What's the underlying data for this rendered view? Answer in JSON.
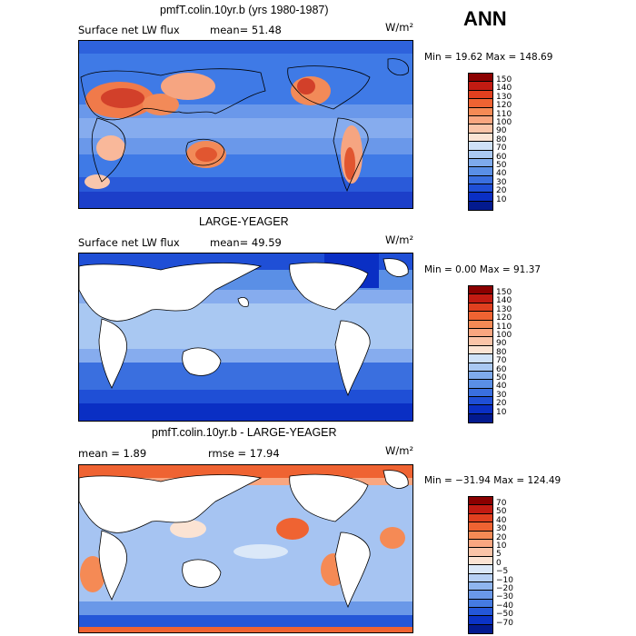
{
  "season": "ANN",
  "panels": [
    {
      "title": "pmfT.colin.10yr.b (yrs 1980-1987)",
      "variable": "Surface net LW flux",
      "stat": "mean=  51.48",
      "units": "W/m²",
      "minmax": "Min =  19.62 Max = 148.69",
      "levels": [
        "150",
        "140",
        "130",
        "120",
        "110",
        "100",
        "90",
        "80",
        "70",
        "60",
        "50",
        "40",
        "30",
        "20",
        "10"
      ],
      "colors": [
        "#8b0000",
        "#c21b12",
        "#e0401f",
        "#ef6332",
        "#f58a55",
        "#f9a680",
        "#fac4a8",
        "#fbe3d3",
        "#cfe1f7",
        "#a9c8f2",
        "#7eaaec",
        "#5a8fe6",
        "#3a6fdf",
        "#1f4fd6",
        "#0a2fc4",
        "#031a8f"
      ]
    },
    {
      "title": "LARGE-YEAGER",
      "variable": "Surface net LW flux",
      "stat": "mean=  49.59",
      "units": "W/m²",
      "minmax": "Min =   0.00 Max =  91.37",
      "levels": [
        "150",
        "140",
        "130",
        "120",
        "110",
        "100",
        "90",
        "80",
        "70",
        "60",
        "50",
        "40",
        "30",
        "20",
        "10"
      ],
      "colors": [
        "#8b0000",
        "#c21b12",
        "#e0401f",
        "#ef6332",
        "#f58a55",
        "#f9a680",
        "#fac4a8",
        "#fbe3d3",
        "#cfe1f7",
        "#a9c8f2",
        "#7eaaec",
        "#5a8fe6",
        "#3a6fdf",
        "#1f4fd6",
        "#0a2fc4",
        "#031a8f"
      ]
    },
    {
      "title": "pmfT.colin.10yr.b - LARGE-YEAGER",
      "variable": "mean =    1.89",
      "stat": "rmse =   17.94",
      "units": "W/m²",
      "minmax": "Min = −31.94 Max = 124.49",
      "levels": [
        "70",
        "50",
        "40",
        "30",
        "20",
        "10",
        "5",
        "0",
        "−5",
        "−10",
        "−20",
        "−30",
        "−40",
        "−50",
        "−70"
      ],
      "colors": [
        "#8b0000",
        "#c21b12",
        "#e0401f",
        "#ef6332",
        "#f58a55",
        "#f9a680",
        "#fac4a8",
        "#fbe3d3",
        "#dbe8f8",
        "#b7d0f4",
        "#8fb5ee",
        "#6a98e8",
        "#457be1",
        "#2457d8",
        "#0b33c6",
        "#031a8f"
      ]
    }
  ]
}
